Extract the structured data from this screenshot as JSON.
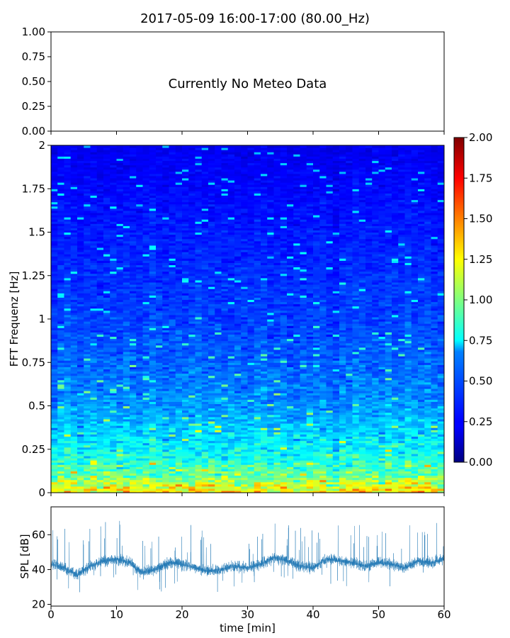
{
  "figure": {
    "title": "2017-05-09 16:00-17:00 (80.00_Hz)"
  },
  "chart_data": [
    {
      "name": "meteo-panel",
      "type": "line",
      "note": "Currently No Meteo Data",
      "ylim": [
        0,
        1
      ],
      "yticks": [
        "0.00",
        "0.25",
        "0.50",
        "0.75",
        "1.00"
      ],
      "xlim": [
        0,
        60
      ],
      "xticks": [
        0,
        10,
        20,
        30,
        40,
        50,
        60
      ],
      "series": []
    },
    {
      "name": "spectrogram-panel",
      "type": "heatmap",
      "ylabel": "FFT Frequenz [Hz]",
      "xlim": [
        0,
        60
      ],
      "ylim": [
        0,
        2
      ],
      "yticks": [
        "0",
        "0.25",
        "0.5",
        "0.75",
        "1",
        "1.25",
        "1.5",
        "1.75",
        "2"
      ],
      "colormap": "jet",
      "colorbar": {
        "range": [
          0,
          2
        ],
        "ticks": [
          "0.00",
          "0.25",
          "0.50",
          "0.75",
          "1.00",
          "1.25",
          "1.50",
          "1.75",
          "2.00"
        ]
      },
      "typical_intensity_by_frequency": {
        "frequency_hz": [
          0,
          0.1,
          0.25,
          0.5,
          0.75,
          1,
          1.5,
          2
        ],
        "mean_value": [
          1.3,
          0.95,
          0.75,
          0.55,
          0.45,
          0.38,
          0.3,
          0.22
        ]
      }
    },
    {
      "name": "spl-panel",
      "type": "line",
      "ylabel": "SPL [dB]",
      "xlabel": "time [min]",
      "xlim": [
        0,
        60
      ],
      "ylim": [
        19,
        76
      ],
      "yticks": [
        20,
        40,
        60
      ],
      "xticks": [
        "0",
        "10",
        "20",
        "30",
        "40",
        "50",
        "60"
      ],
      "color": "#1f77b4",
      "series": [
        {
          "x": [
            0,
            2,
            4,
            6,
            8,
            10,
            12,
            14,
            16,
            18,
            20,
            22,
            24,
            26,
            28,
            30,
            32,
            34,
            36,
            38,
            40,
            42,
            44,
            46,
            48,
            50,
            52,
            54,
            56,
            58,
            60
          ],
          "y": [
            43,
            41,
            37,
            42,
            45,
            46,
            44,
            38,
            40,
            44,
            43,
            41,
            39,
            40,
            42,
            41,
            43,
            47,
            45,
            42,
            41,
            46,
            45,
            44,
            42,
            44,
            43,
            41,
            45,
            44,
            46
          ]
        }
      ]
    }
  ]
}
